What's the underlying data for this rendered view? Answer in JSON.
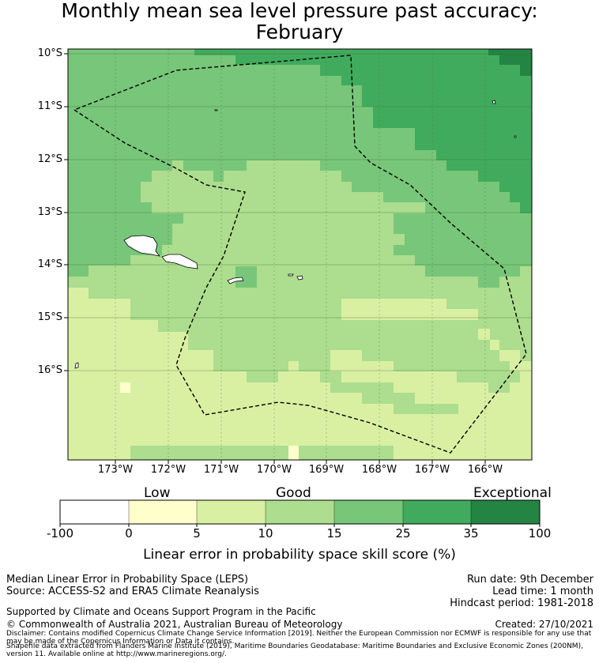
{
  "title": {
    "line1": "Monthly mean sea level pressure past accuracy:",
    "line2": "February"
  },
  "map": {
    "lat_labels": [
      "10°S",
      "11°S",
      "12°S",
      "13°S",
      "14°S",
      "15°S",
      "16°S"
    ],
    "lon_labels": [
      "173°W",
      "172°W",
      "171°W",
      "170°W",
      "169°W",
      "168°W",
      "167°W",
      "166°W"
    ],
    "boundary_style": "dashed black outline (Samoa EEZ)",
    "colors": {
      "c1": "#ffffcc",
      "c2": "#d9f0a3",
      "c3": "#addd8e",
      "c4": "#78c679",
      "c5": "#41ab5d",
      "c6": "#238443",
      "land": "#ffffff"
    }
  },
  "colorbar": {
    "categories": [
      "Low",
      "Good",
      "Exceptional"
    ],
    "ticks": [
      "-100",
      "0",
      "5",
      "10",
      "15",
      "25",
      "35",
      "100"
    ],
    "colors": [
      "#ffffff",
      "#ffffcc",
      "#d9f0a3",
      "#addd8e",
      "#78c679",
      "#41ab5d",
      "#238443"
    ],
    "label": "Linear error in probability space skill score (%)"
  },
  "footer": {
    "left1": "Median Linear Error in Probability Space (LEPS)",
    "left2": "Source: ACCESS-S2 and ERA5 Climate Reanalysis",
    "right1": "Run date: 9th December",
    "right2": "Lead time: 1 month",
    "right3": "Hindcast period: 1981-2018",
    "support": "Supported by Climate and Oceans Support Program in the Pacific",
    "copyright": "© Commonwealth of Australia 2021, Australian Bureau of Meteorology",
    "created": "Created: 27/10/2021",
    "disclaimer": "Disclaimer: Contains modified Copernicus Climate Change Service Information [2019]. Neither the European Commission nor ECMWF is responsible for any use that may be made of the Copernicus Information or Data it contains.",
    "shapefile": "Shapefile data extracted from Flanders Marine Institute (2019), Maritime Boundaries Geodatabase: Maritime Boundaries and Exclusive Economic Zones (200NM), version 11. Available online at http://www.marineregions.org/."
  }
}
